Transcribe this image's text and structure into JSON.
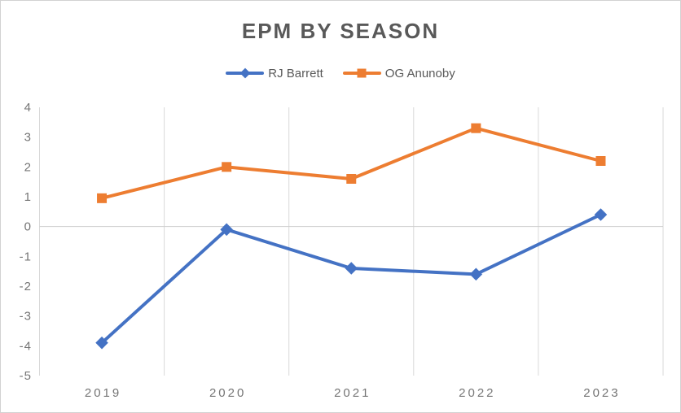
{
  "chart_data": {
    "type": "line",
    "title": "EPM BY SEASON",
    "categories": [
      "2019",
      "2020",
      "2021",
      "2022",
      "2023"
    ],
    "series": [
      {
        "name": "RJ Barrett",
        "color": "#4472C4",
        "marker": "diamond",
        "values": [
          -3.9,
          -0.1,
          -1.4,
          -1.6,
          0.4
        ]
      },
      {
        "name": "OG Anunoby",
        "color": "#ED7D31",
        "marker": "square",
        "values": [
          0.95,
          2.0,
          1.6,
          3.3,
          2.2
        ]
      }
    ],
    "y_ticks": [
      4,
      3,
      2,
      1,
      0,
      -1,
      -2,
      -3,
      -4,
      -5
    ],
    "ylim": [
      -5,
      4
    ],
    "xlabel": "",
    "ylabel": "",
    "grid": "vertical category-boundary gridlines plus horizontal zero line",
    "legend_position": "top",
    "colors": {
      "gridline": "#D9D9D9",
      "axis_line": "#D9D9D9",
      "zero_line": "#CDCDCD",
      "tick_text": "#757575",
      "title_text": "#595959",
      "legend_text": "#595959"
    }
  }
}
